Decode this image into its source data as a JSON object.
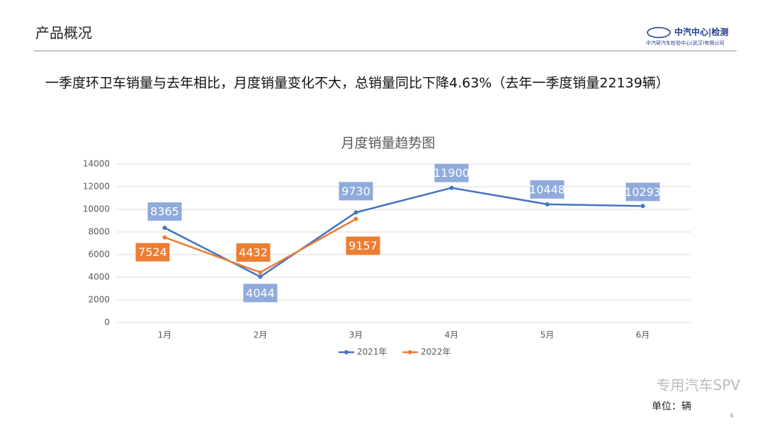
{
  "slide": {
    "header": "产品概况",
    "logo": "中汽中心|检测",
    "company": "中汽研汽车检验中心(武汉)有限公司",
    "headline": "一季度环卫车销量与去年相比，月度销量变化不大，总销量同比下降4.63%（去年一季度销量22139辆）",
    "unit": "单位：辆",
    "page": "4",
    "watermark": "专用汽车SPV"
  },
  "chart_data": {
    "type": "line",
    "title": "月度销量趋势图",
    "categories": [
      "1月",
      "2月",
      "3月",
      "4月",
      "5月",
      "6月"
    ],
    "series": [
      {
        "name": "2021年",
        "color": "#4472c4",
        "label_color": "#8faadc",
        "values": [
          8365,
          4044,
          9730,
          11900,
          10448,
          10293
        ]
      },
      {
        "name": "2022年",
        "color": "#ed7d31",
        "label_color": "#ed7d31",
        "values": [
          7524,
          4432,
          9157,
          null,
          null,
          null
        ]
      }
    ],
    "ylim": [
      0,
      14000
    ],
    "yticks": [
      0,
      2000,
      4000,
      6000,
      8000,
      10000,
      12000,
      14000
    ],
    "grid": true,
    "legend": "bottom"
  }
}
